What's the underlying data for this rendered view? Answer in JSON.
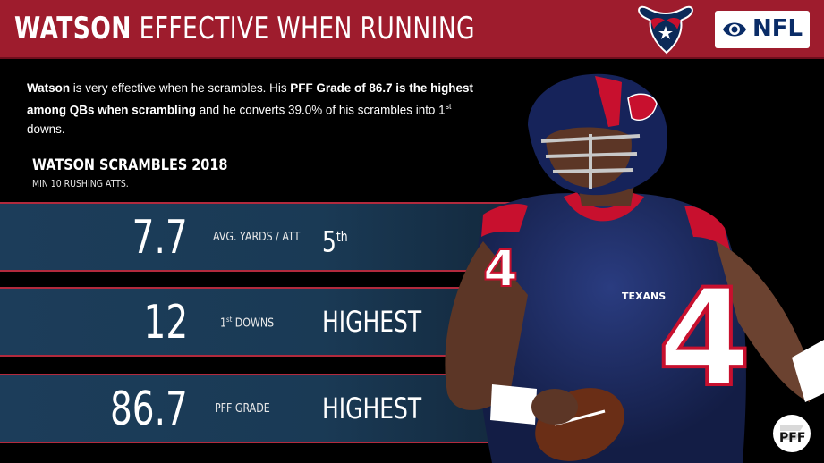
{
  "header": {
    "title_bold": "WATSON",
    "title_rest": "EFFECTIVE WHEN RUNNING",
    "network_logo_text": "NFL",
    "team_logo_icon": "texans-bull-head-icon",
    "network_logo_icon": "cbs-eye-icon"
  },
  "intro": {
    "part1_bold": "Watson",
    "part2": " is very effective when he scrambles. His ",
    "part3_bold": "PFF Grade of 86.7 is the highest among QBs when scrambling",
    "part4": " and he converts 39.0% of his scrambles into 1",
    "part4_sup": "st",
    "part5": " downs."
  },
  "section": {
    "title": "WATSON SCRAMBLES 2018",
    "subtitle": "MIN 10 RUSHING ATTS."
  },
  "stats": [
    {
      "value": "7.7",
      "label": "AVG. YARDS / ATT",
      "label_sup": "",
      "label_prefix": "",
      "rank": "5",
      "rank_sup": "th"
    },
    {
      "value": "12",
      "label_prefix": "1",
      "label_sup": "st",
      "label": " DOWNS",
      "rank": "HIGHEST",
      "rank_sup": ""
    },
    {
      "value": "86.7",
      "label": "PFF GRADE",
      "label_sup": "",
      "label_prefix": "",
      "rank": "HIGHEST",
      "rank_sup": ""
    }
  ],
  "colors": {
    "header_red": "#9e1c2d",
    "row_navy": "#1c3d5a",
    "row_border_red": "#b22a3d",
    "jersey_navy": "#1f2f6b",
    "jersey_red": "#c8102e"
  },
  "player_image": {
    "jersey_number": "4",
    "jersey_wordmark": "TEXANS"
  },
  "watermark": {
    "icon": "pff-logo-icon",
    "text": "PFF"
  }
}
